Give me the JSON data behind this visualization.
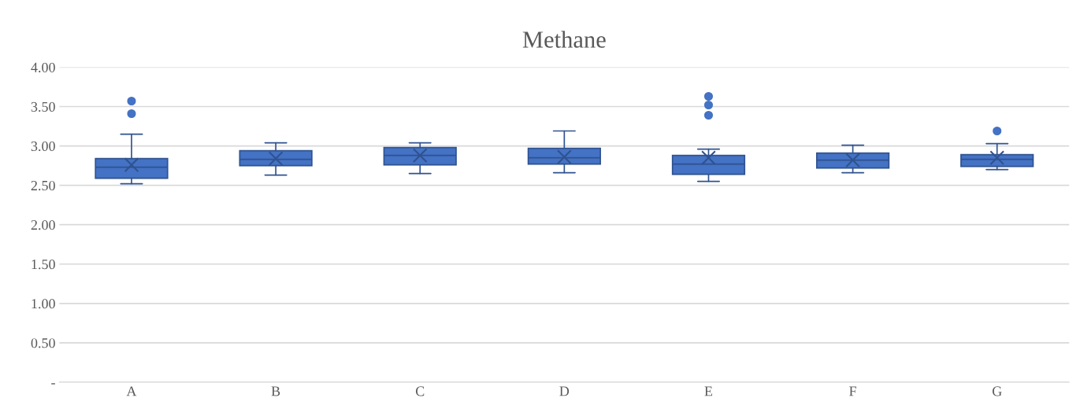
{
  "chart_data": {
    "type": "box",
    "title": "Methane",
    "categories": [
      "A",
      "B",
      "C",
      "D",
      "E",
      "F",
      "G"
    ],
    "color": "#4472c4",
    "boxes": [
      {
        "low": 2.52,
        "q1": 2.59,
        "median": 2.73,
        "q3": 2.84,
        "high": 3.15,
        "mean": 2.76,
        "outliers": [
          3.57,
          3.41
        ]
      },
      {
        "low": 2.63,
        "q1": 2.75,
        "median": 2.83,
        "q3": 2.94,
        "high": 3.04,
        "mean": 2.84
      },
      {
        "low": 2.65,
        "q1": 2.76,
        "median": 2.88,
        "q3": 2.98,
        "high": 3.04,
        "mean": 2.88
      },
      {
        "low": 2.66,
        "q1": 2.77,
        "median": 2.85,
        "q3": 2.97,
        "high": 3.19,
        "mean": 2.86
      },
      {
        "low": 2.55,
        "q1": 2.64,
        "median": 2.77,
        "q3": 2.88,
        "high": 2.96,
        "mean": 2.85,
        "outliers": [
          3.63,
          3.52,
          3.39
        ]
      },
      {
        "low": 2.66,
        "q1": 2.72,
        "median": 2.82,
        "q3": 2.91,
        "high": 3.01,
        "mean": 2.82
      },
      {
        "low": 2.7,
        "q1": 2.74,
        "median": 2.83,
        "q3": 2.89,
        "high": 3.03,
        "mean": 2.85,
        "outliers": [
          3.19
        ]
      }
    ],
    "ylim": [
      0,
      4
    ],
    "yticks": [
      {
        "value": 0,
        "label": "-"
      },
      {
        "value": 0.5,
        "label": "0.50"
      },
      {
        "value": 1,
        "label": "1.00"
      },
      {
        "value": 1.5,
        "label": "1.50"
      },
      {
        "value": 2,
        "label": "2.00"
      },
      {
        "value": 2.5,
        "label": "2.50"
      },
      {
        "value": 3,
        "label": "3.00"
      },
      {
        "value": 3.5,
        "label": "3.50"
      },
      {
        "value": 4,
        "label": "4.00"
      }
    ],
    "grid": "y",
    "marker": "circle"
  }
}
